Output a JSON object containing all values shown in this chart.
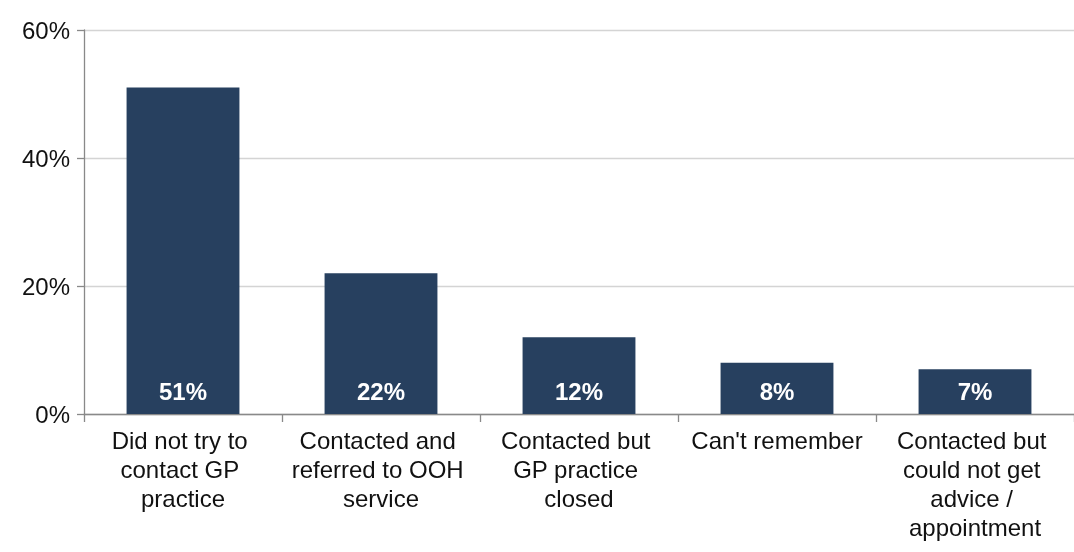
{
  "chart_data": {
    "type": "bar",
    "categories": [
      "Did not try to contact GP practice",
      "Contacted and referred to OOH service",
      "Contacted but GP practice closed",
      "Can't remember",
      "Contacted but could not get advice / appointment"
    ],
    "values": [
      51,
      22,
      12,
      8,
      7
    ],
    "color": "#27405f",
    "value_labels": [
      "51%",
      "22%",
      "12%",
      "8%",
      "7%"
    ],
    "ylim": [
      0,
      60
    ],
    "yticks": [
      {
        "value": 0,
        "label": "0%"
      },
      {
        "value": 20,
        "label": "20%"
      },
      {
        "value": 40,
        "label": "40%"
      },
      {
        "value": 60,
        "label": "60%"
      }
    ],
    "grid": "y"
  }
}
